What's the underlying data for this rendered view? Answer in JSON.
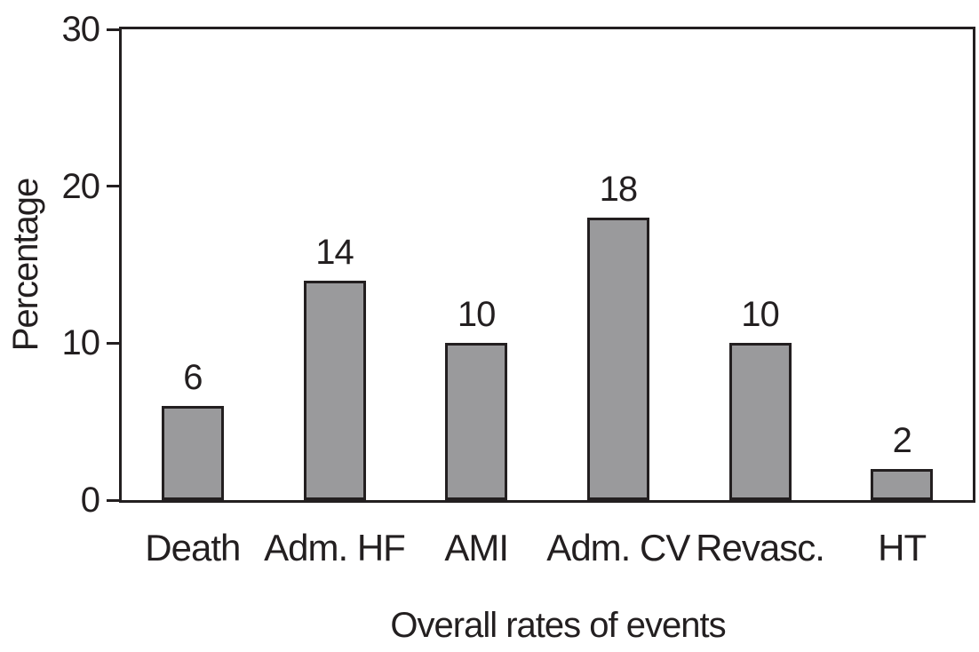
{
  "chart_data": {
    "type": "bar",
    "title": "",
    "xlabel": "Overall rates of events",
    "ylabel": "Percentage",
    "categories": [
      "Death",
      "Adm. HF",
      "AMI",
      "Adm. CV",
      "Revasc.",
      "HT"
    ],
    "values": [
      6,
      14,
      10,
      18,
      10,
      2
    ],
    "bar_labels": [
      "6",
      "14",
      "10",
      "18",
      "10",
      "2"
    ],
    "ylim": [
      0,
      30
    ],
    "yticks": [
      0,
      10,
      20,
      30
    ],
    "grid": false,
    "legend_position": "none",
    "colors": {
      "bar_fill": "#9a9a9c",
      "bar_border": "#231f20",
      "axis": "#231f20",
      "text": "#231f20",
      "background": "#ffffff"
    }
  }
}
